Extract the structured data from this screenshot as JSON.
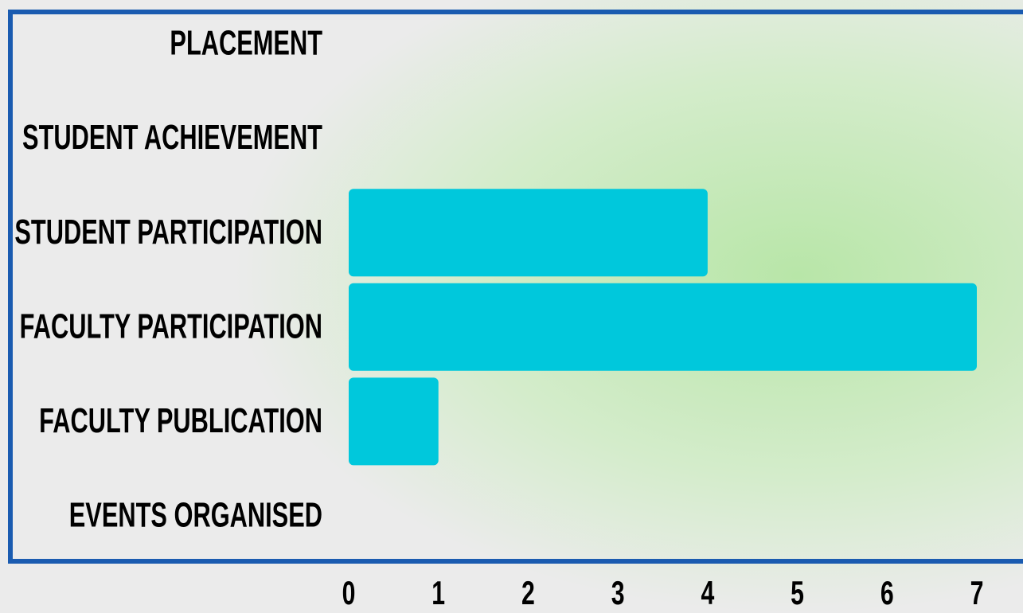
{
  "chart_data": {
    "type": "bar",
    "orientation": "horizontal",
    "categories": [
      "PLACEMENT",
      "STUDENT ACHIEVEMENT",
      "STUDENT PARTICIPATION",
      "FACULTY PARTICIPATION",
      "FACULTY PUBLICATION",
      "EVENTS ORGANISED"
    ],
    "values": [
      0,
      0,
      4,
      7,
      1,
      0
    ],
    "color": "#00c8dc",
    "xlim": [
      0,
      7
    ],
    "xticks": [
      0,
      1,
      2,
      3,
      4,
      5,
      6,
      7
    ]
  }
}
